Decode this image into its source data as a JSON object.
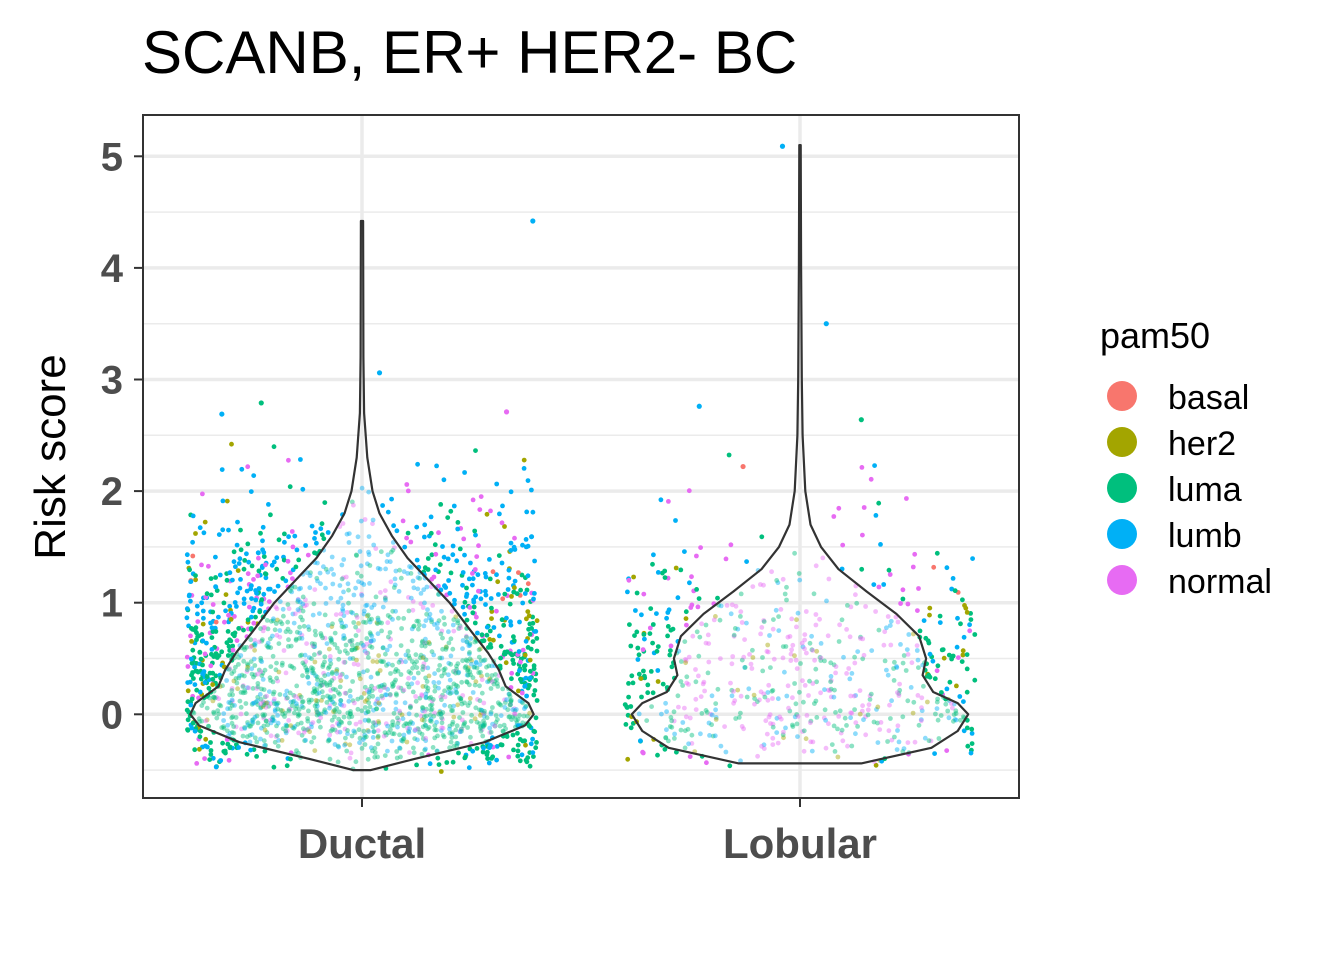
{
  "chart_data": {
    "type": "violin",
    "title": "SCANB, ER+ HER2- BC",
    "xlabel": "",
    "ylabel": "Risk score",
    "categories": [
      "Ductal",
      "Lobular"
    ],
    "ylim": [
      -0.75,
      5.37
    ],
    "yticks": [
      0,
      1,
      2,
      3,
      4,
      5
    ],
    "grid": true,
    "legend": {
      "title": "pam50",
      "position": "right",
      "entries": [
        {
          "name": "basal",
          "color": "#F8766D"
        },
        {
          "name": "her2",
          "color": "#A3A500"
        },
        {
          "name": "luma",
          "color": "#00BF7D"
        },
        {
          "name": "lumb",
          "color": "#00B0F6"
        },
        {
          "name": "normal",
          "color": "#E76BF3"
        }
      ]
    },
    "violins": [
      {
        "category": "Ductal",
        "y_range": [
          -0.5,
          4.42
        ],
        "density_profile": [
          [
            -0.5,
            0.05
          ],
          [
            -0.4,
            0.3
          ],
          [
            -0.25,
            0.7
          ],
          [
            -0.1,
            0.93
          ],
          [
            0.0,
            0.98
          ],
          [
            0.1,
            0.95
          ],
          [
            0.25,
            0.82
          ],
          [
            0.4,
            0.78
          ],
          [
            0.55,
            0.72
          ],
          [
            0.75,
            0.62
          ],
          [
            1.0,
            0.5
          ],
          [
            1.2,
            0.38
          ],
          [
            1.4,
            0.26
          ],
          [
            1.6,
            0.17
          ],
          [
            1.8,
            0.1
          ],
          [
            2.0,
            0.06
          ],
          [
            2.3,
            0.03
          ],
          [
            2.7,
            0.012
          ],
          [
            3.2,
            0.008
          ],
          [
            4.42,
            0.006
          ]
        ],
        "approx_n": 2200
      },
      {
        "category": "Lobular",
        "y_range": [
          -0.44,
          5.1
        ],
        "density_profile": [
          [
            -0.44,
            0.35
          ],
          [
            -0.3,
            0.75
          ],
          [
            -0.15,
            0.9
          ],
          [
            0.0,
            0.96
          ],
          [
            0.1,
            0.9
          ],
          [
            0.2,
            0.76
          ],
          [
            0.35,
            0.7
          ],
          [
            0.5,
            0.72
          ],
          [
            0.7,
            0.68
          ],
          [
            0.9,
            0.55
          ],
          [
            1.1,
            0.38
          ],
          [
            1.3,
            0.22
          ],
          [
            1.5,
            0.12
          ],
          [
            1.7,
            0.06
          ],
          [
            2.0,
            0.03
          ],
          [
            2.5,
            0.015
          ],
          [
            3.0,
            0.01
          ],
          [
            4.0,
            0.006
          ],
          [
            5.1,
            0.004
          ]
        ],
        "approx_n": 700
      }
    ],
    "outlier_points": [
      {
        "category": "Ductal",
        "x_offset": 0.39,
        "y": 4.42,
        "group": "lumb"
      },
      {
        "category": "Ductal",
        "x_offset": 0.04,
        "y": 3.06,
        "group": "lumb"
      },
      {
        "category": "Ductal",
        "x_offset": 0.33,
        "y": 2.71,
        "group": "normal"
      },
      {
        "category": "Ductal",
        "x_offset": -0.23,
        "y": 2.79,
        "group": "luma"
      },
      {
        "category": "Ductal",
        "x_offset": -0.32,
        "y": 2.69,
        "group": "lumb"
      },
      {
        "category": "Lobular",
        "x_offset": -0.04,
        "y": 5.09,
        "group": "lumb"
      },
      {
        "category": "Lobular",
        "x_offset": 0.06,
        "y": 3.5,
        "group": "lumb"
      },
      {
        "category": "Lobular",
        "x_offset": -0.23,
        "y": 2.76,
        "group": "lumb"
      },
      {
        "category": "Lobular",
        "x_offset": 0.14,
        "y": 2.64,
        "group": "luma"
      },
      {
        "category": "Lobular",
        "x_offset": -0.13,
        "y": 2.22,
        "group": "basal"
      }
    ]
  }
}
